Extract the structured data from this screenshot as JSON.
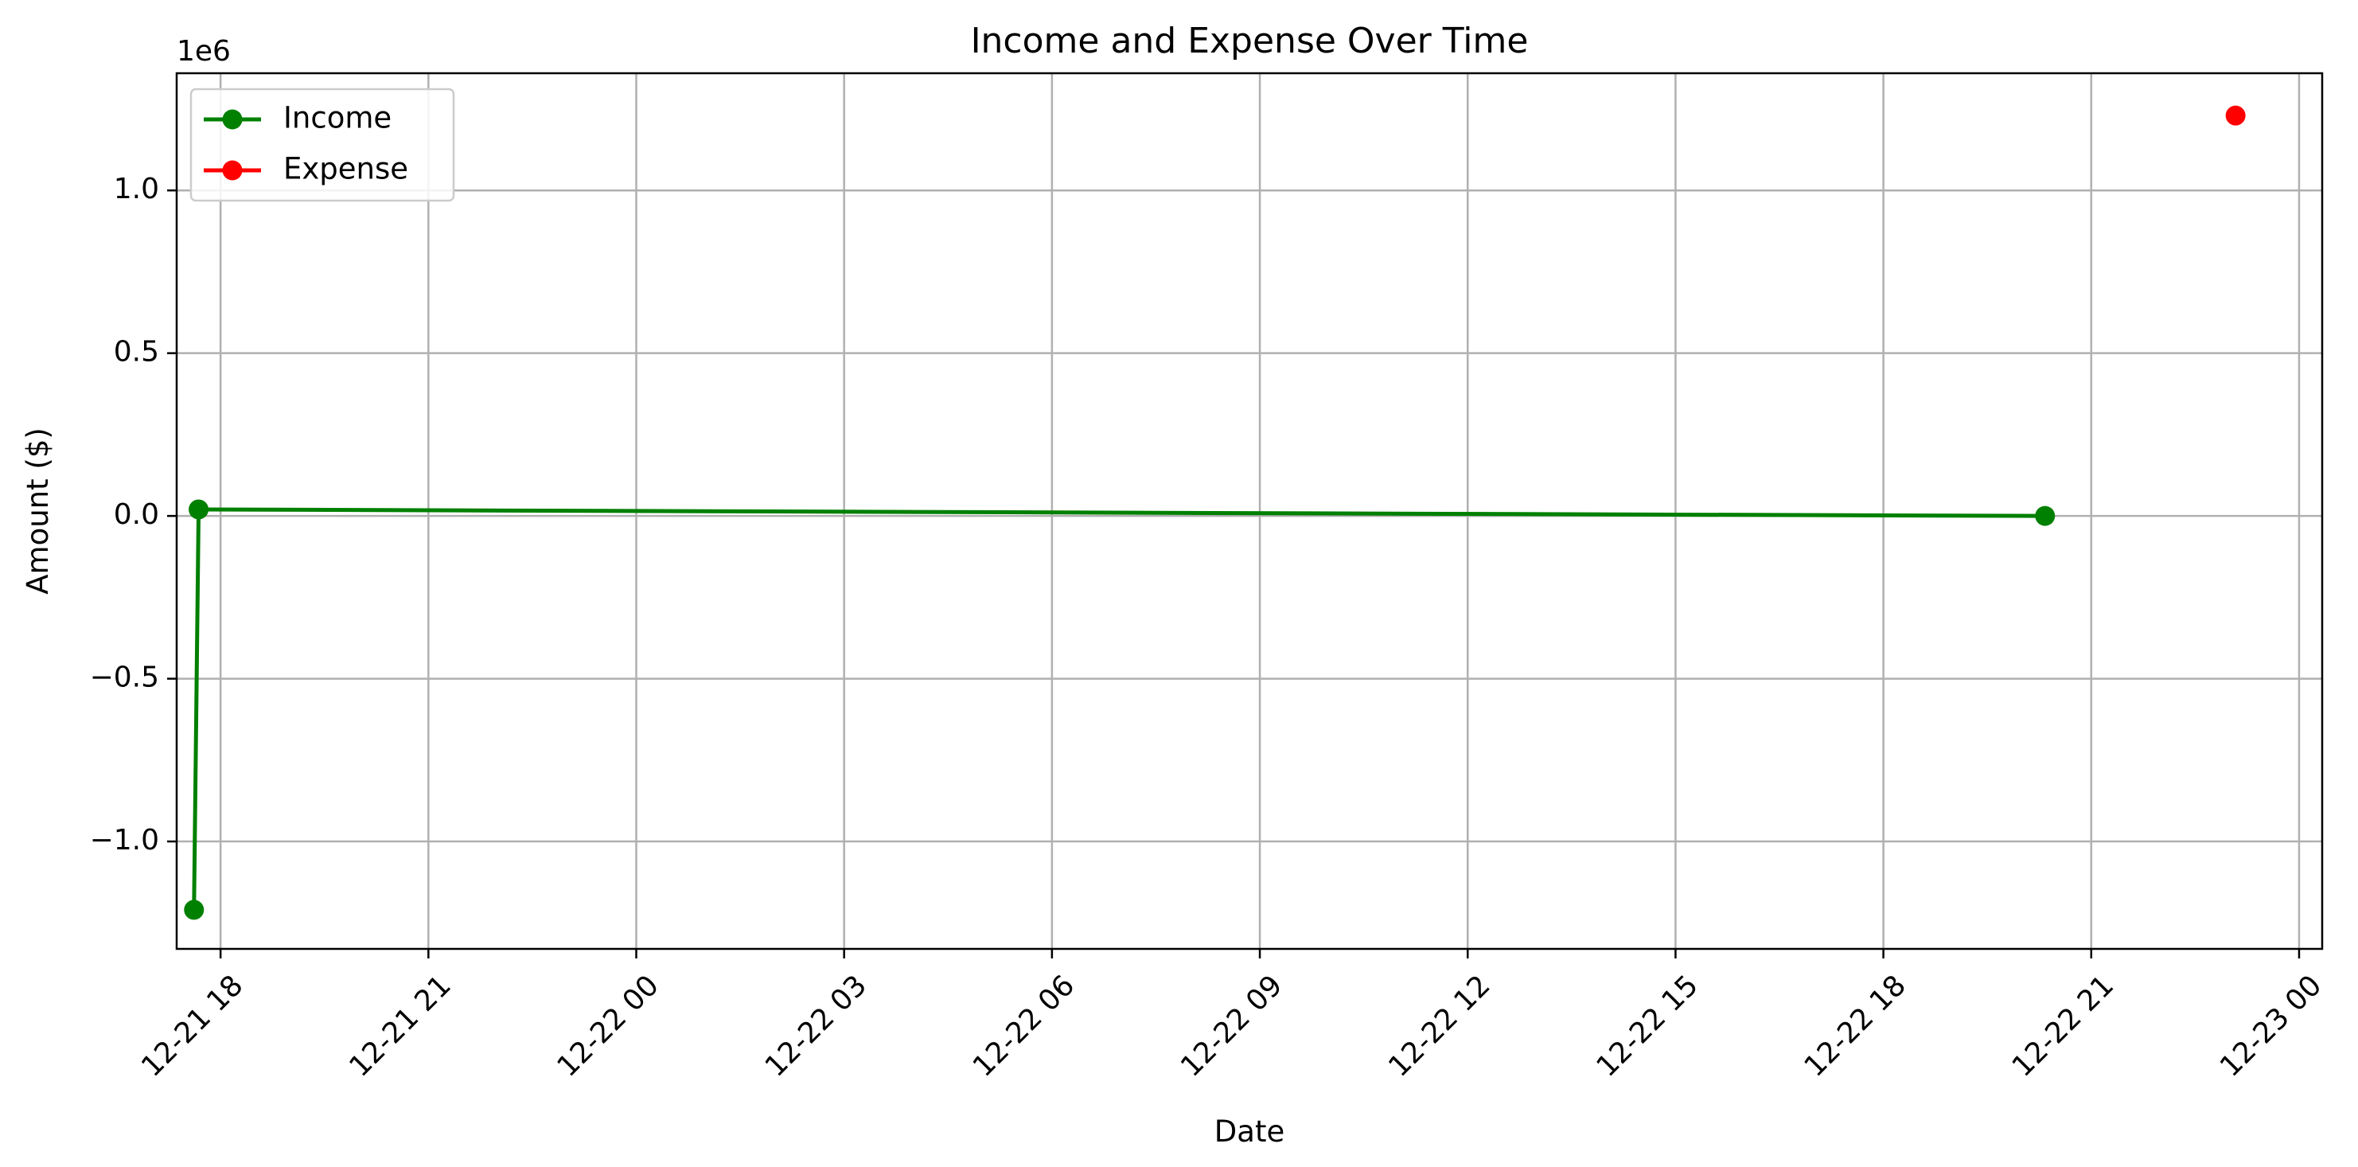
{
  "chart_data": {
    "type": "line",
    "title": "Income and Expense Over Time",
    "xlabel": "Date",
    "ylabel": "Amount ($)",
    "y_offset_label": "1e6",
    "y_scale_factor": 1000000,
    "grid": true,
    "legend_placement": "upper-left",
    "x_range": [
      "2022-12-21 17:22",
      "2022-12-23 00:20"
    ],
    "ylim": [
      -1330000,
      1360000
    ],
    "x_ticks": [
      {
        "value": "2022-12-21 18:00",
        "label": "12-21 18"
      },
      {
        "value": "2022-12-21 21:00",
        "label": "12-21 21"
      },
      {
        "value": "2022-12-22 00:00",
        "label": "12-22 00"
      },
      {
        "value": "2022-12-22 03:00",
        "label": "12-22 03"
      },
      {
        "value": "2022-12-22 06:00",
        "label": "12-22 06"
      },
      {
        "value": "2022-12-22 09:00",
        "label": "12-22 09"
      },
      {
        "value": "2022-12-22 12:00",
        "label": "12-22 12"
      },
      {
        "value": "2022-12-22 15:00",
        "label": "12-22 15"
      },
      {
        "value": "2022-12-22 18:00",
        "label": "12-22 18"
      },
      {
        "value": "2022-12-22 21:00",
        "label": "12-22 21"
      },
      {
        "value": "2022-12-23 00:00",
        "label": "12-23 00"
      }
    ],
    "y_ticks": [
      {
        "value": -1000000,
        "label": "−1.0"
      },
      {
        "value": -500000,
        "label": "−0.5"
      },
      {
        "value": 0,
        "label": "0.0"
      },
      {
        "value": 500000,
        "label": "0.5"
      },
      {
        "value": 1000000,
        "label": "1.0"
      }
    ],
    "series": [
      {
        "name": "Income",
        "color": "#008000",
        "x": [
          "2022-12-21 17:37",
          "2022-12-21 17:41",
          "2022-12-22 20:20"
        ],
        "y": [
          -1210000,
          20000,
          0
        ]
      },
      {
        "name": "Expense",
        "color": "#ff0000",
        "x": [
          "2022-12-22 23:05"
        ],
        "y": [
          1230000
        ]
      }
    ]
  }
}
